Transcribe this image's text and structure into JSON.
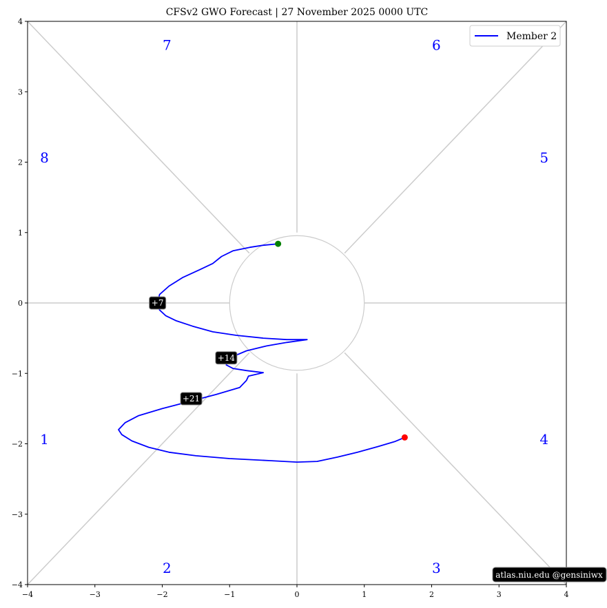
{
  "chart_data": {
    "type": "line",
    "title": "CFSv2 GWO Forecast   |   27  November  2025 0000 UTC",
    "xlim": [
      -4,
      4
    ],
    "ylim": [
      -4,
      4
    ],
    "xticks": [
      -4,
      -3,
      -2,
      -1,
      0,
      1,
      2,
      3,
      4
    ],
    "yticks": [
      -4,
      -3,
      -2,
      -1,
      0,
      1,
      2,
      3,
      4
    ],
    "xtick_labels": [
      "−4",
      "−3",
      "−2",
      "−1",
      "0",
      "1",
      "2",
      "3",
      "4"
    ],
    "ytick_labels": [
      "−4",
      "−3",
      "−2",
      "−1",
      "0",
      "1",
      "2",
      "3",
      "4"
    ],
    "grid": false,
    "legend_position": "top-right",
    "reference_circle_radius": 1,
    "phases": [
      {
        "label": "1",
        "x": -3.75,
        "y": -1.95
      },
      {
        "label": "2",
        "x": -1.93,
        "y": -3.78
      },
      {
        "label": "3",
        "x": 2.07,
        "y": -3.78
      },
      {
        "label": "4",
        "x": 3.67,
        "y": -1.95
      },
      {
        "label": "5",
        "x": 3.67,
        "y": 2.05
      },
      {
        "label": "6",
        "x": 2.07,
        "y": 3.65
      },
      {
        "label": "7",
        "x": -1.93,
        "y": 3.65
      },
      {
        "label": "8",
        "x": -3.75,
        "y": 2.05
      }
    ],
    "series": [
      {
        "name": "Member 2",
        "color": "#0000ff",
        "x": [
          -0.28,
          -0.5,
          -0.7,
          -0.95,
          -1.12,
          -1.25,
          -1.45,
          -1.7,
          -1.9,
          -2.04,
          -2.07,
          -2.04,
          -1.95,
          -1.8,
          -1.55,
          -1.25,
          -0.9,
          -0.5,
          -0.15,
          0.15,
          -0.15,
          -0.45,
          -0.75,
          -1.0,
          -1.05,
          -0.95,
          -0.75,
          -0.5,
          -0.72,
          -0.75,
          -0.85,
          -1.2,
          -1.6,
          -2.0,
          -2.35,
          -2.55,
          -2.65,
          -2.6,
          -2.45,
          -2.2,
          -1.9,
          -1.5,
          -1.0,
          -0.4,
          0.0,
          0.3,
          0.6,
          0.9,
          1.2,
          1.45,
          1.6
        ],
        "y": [
          0.84,
          0.82,
          0.79,
          0.74,
          0.66,
          0.56,
          0.47,
          0.36,
          0.24,
          0.12,
          0.0,
          -0.1,
          -0.18,
          -0.25,
          -0.33,
          -0.41,
          -0.46,
          -0.5,
          -0.52,
          -0.52,
          -0.56,
          -0.61,
          -0.68,
          -0.78,
          -0.88,
          -0.93,
          -0.96,
          -0.99,
          -1.04,
          -1.1,
          -1.2,
          -1.3,
          -1.4,
          -1.5,
          -1.6,
          -1.7,
          -1.8,
          -1.87,
          -1.96,
          -2.05,
          -2.12,
          -2.17,
          -2.21,
          -2.24,
          -2.26,
          -2.25,
          -2.19,
          -2.12,
          -2.04,
          -1.97,
          -1.91
        ]
      }
    ],
    "start_point": {
      "x": -0.28,
      "y": 0.84,
      "color": "#008000"
    },
    "end_point": {
      "x": 1.6,
      "y": -1.91,
      "color": "#ff0000"
    },
    "day_labels": [
      {
        "text": "+7",
        "x": -2.07,
        "y": 0.0
      },
      {
        "text": "+14",
        "x": -1.05,
        "y": -0.78
      },
      {
        "text": "+21",
        "x": -1.57,
        "y": -1.36
      }
    ]
  },
  "credit": "atlas.niu.edu  @gensiniwx"
}
